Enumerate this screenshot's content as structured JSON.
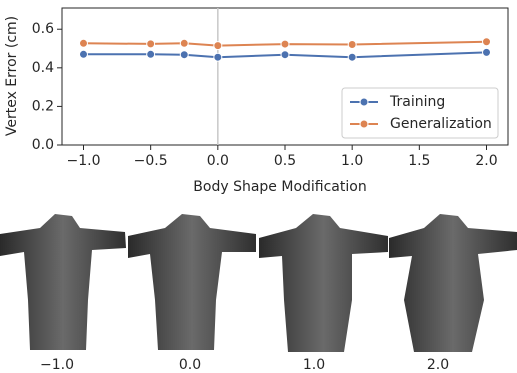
{
  "chart_data": {
    "type": "line",
    "x_label": "Body Shape Modification",
    "y_label": "Vertex Error (cm)",
    "x": [
      -1.0,
      -0.5,
      -0.25,
      0.0,
      0.5,
      1.0,
      2.0
    ],
    "series": [
      {
        "name": "Training",
        "color": "#4c72b0",
        "values": [
          0.47,
          0.47,
          0.468,
          0.455,
          0.468,
          0.455,
          0.48
        ]
      },
      {
        "name": "Generalization",
        "color": "#dd8452",
        "values": [
          0.527,
          0.524,
          0.527,
          0.515,
          0.523,
          0.521,
          0.535
        ]
      }
    ],
    "xlim": [
      -1.16,
      2.16
    ],
    "xticks": [
      {
        "value": -1.0,
        "label": "−1.0"
      },
      {
        "value": -0.5,
        "label": "−0.5"
      },
      {
        "value": 0.0,
        "label": "0.0"
      },
      {
        "value": 0.5,
        "label": "0.5"
      },
      {
        "value": 1.0,
        "label": "1.0"
      },
      {
        "value": 1.5,
        "label": "1.5"
      },
      {
        "value": 2.0,
        "label": "2.0"
      }
    ],
    "ylim": [
      0,
      0.71
    ],
    "yticks": [
      {
        "value": 0.0,
        "label": "0.0"
      },
      {
        "value": 0.2,
        "label": "0.2"
      },
      {
        "value": 0.4,
        "label": "0.4"
      },
      {
        "value": 0.6,
        "label": "0.6"
      }
    ],
    "vline_x": 0.0,
    "legend": "lower right"
  },
  "panels": [
    {
      "label": "−1.0"
    },
    {
      "label": "0.0"
    },
    {
      "label": "1.0"
    },
    {
      "label": "2.0"
    }
  ]
}
